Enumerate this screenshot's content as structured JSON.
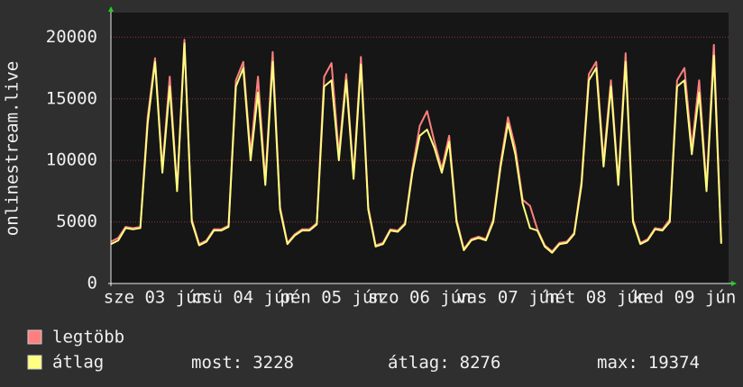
{
  "chart_data": {
    "type": "line",
    "ylabel": "onlinestream.live",
    "x": [
      null,
      null,
      null,
      null,
      null,
      null,
      "sze 03 jún",
      null,
      null,
      null,
      null,
      null,
      null,
      null,
      null,
      null,
      null,
      null,
      "csü 04 jún",
      null,
      null,
      null,
      null,
      null,
      null,
      null,
      null,
      null,
      null,
      null,
      "pén 05 jún",
      null,
      null,
      null,
      null,
      null,
      null,
      null,
      null,
      null,
      null,
      null,
      "szo 06 jún",
      null,
      null,
      null,
      null,
      null,
      null,
      null,
      null,
      null,
      null,
      null,
      "vas 07 jún",
      null,
      null,
      null,
      null,
      null,
      null,
      null,
      null,
      null,
      null,
      null,
      "hét 08 jún",
      null,
      null,
      null,
      null,
      null,
      null,
      null,
      null,
      null,
      null,
      null,
      "ked 09 jún",
      null,
      null,
      null,
      null,
      null
    ],
    "ylim": [
      0,
      22000
    ],
    "yticks": [
      0,
      5000,
      10000,
      15000,
      20000
    ],
    "grid": true,
    "series": [
      {
        "name": "legtöbb",
        "color": "#ff7f7f",
        "values": [
          3400,
          3700,
          4600,
          4500,
          4600,
          13500,
          18300,
          9300,
          16800,
          7700,
          19800,
          5200,
          3200,
          3500,
          4400,
          4400,
          4700,
          16500,
          18000,
          10500,
          16800,
          8300,
          18800,
          6200,
          3300,
          4000,
          4400,
          4400,
          4900,
          16800,
          17900,
          10500,
          17000,
          8800,
          18400,
          6200,
          3100,
          3300,
          4400,
          4300,
          4900,
          9300,
          12800,
          14000,
          11500,
          9300,
          12000,
          5200,
          2800,
          3600,
          3800,
          3600,
          5200,
          9800,
          13500,
          11000,
          6800,
          6300,
          4400,
          3100,
          2600,
          3300,
          3400,
          4100,
          8300,
          17000,
          18000,
          10000,
          16500,
          8300,
          18700,
          5200,
          3300,
          3600,
          4500,
          4400,
          5200,
          16500,
          17500,
          11000,
          16500,
          7800,
          19374,
          3400
        ]
      },
      {
        "name": "átlag",
        "color": "#ffff80",
        "values": [
          3200,
          3500,
          4500,
          4400,
          4500,
          13000,
          18000,
          9000,
          16000,
          7500,
          19500,
          5000,
          3100,
          3400,
          4300,
          4300,
          4600,
          16000,
          17500,
          10000,
          15500,
          8000,
          18000,
          6000,
          3200,
          3900,
          4300,
          4300,
          4800,
          16000,
          16500,
          10000,
          16500,
          8500,
          17800,
          6000,
          3000,
          3200,
          4300,
          4200,
          4800,
          9000,
          12000,
          12500,
          11000,
          9000,
          11500,
          5000,
          2700,
          3500,
          3700,
          3500,
          5000,
          9500,
          13000,
          10500,
          6500,
          4500,
          4300,
          3000,
          2500,
          3200,
          3300,
          4000,
          8000,
          16500,
          17500,
          9500,
          16000,
          8000,
          18000,
          5000,
          3200,
          3500,
          4400,
          4300,
          5000,
          16000,
          16500,
          10500,
          15500,
          7500,
          18500,
          3228
        ]
      }
    ],
    "stats": [
      {
        "label": "most:",
        "value": 3228
      },
      {
        "label": "átlag:",
        "value": 8276
      },
      {
        "label": "max:",
        "value": 19374
      }
    ]
  }
}
